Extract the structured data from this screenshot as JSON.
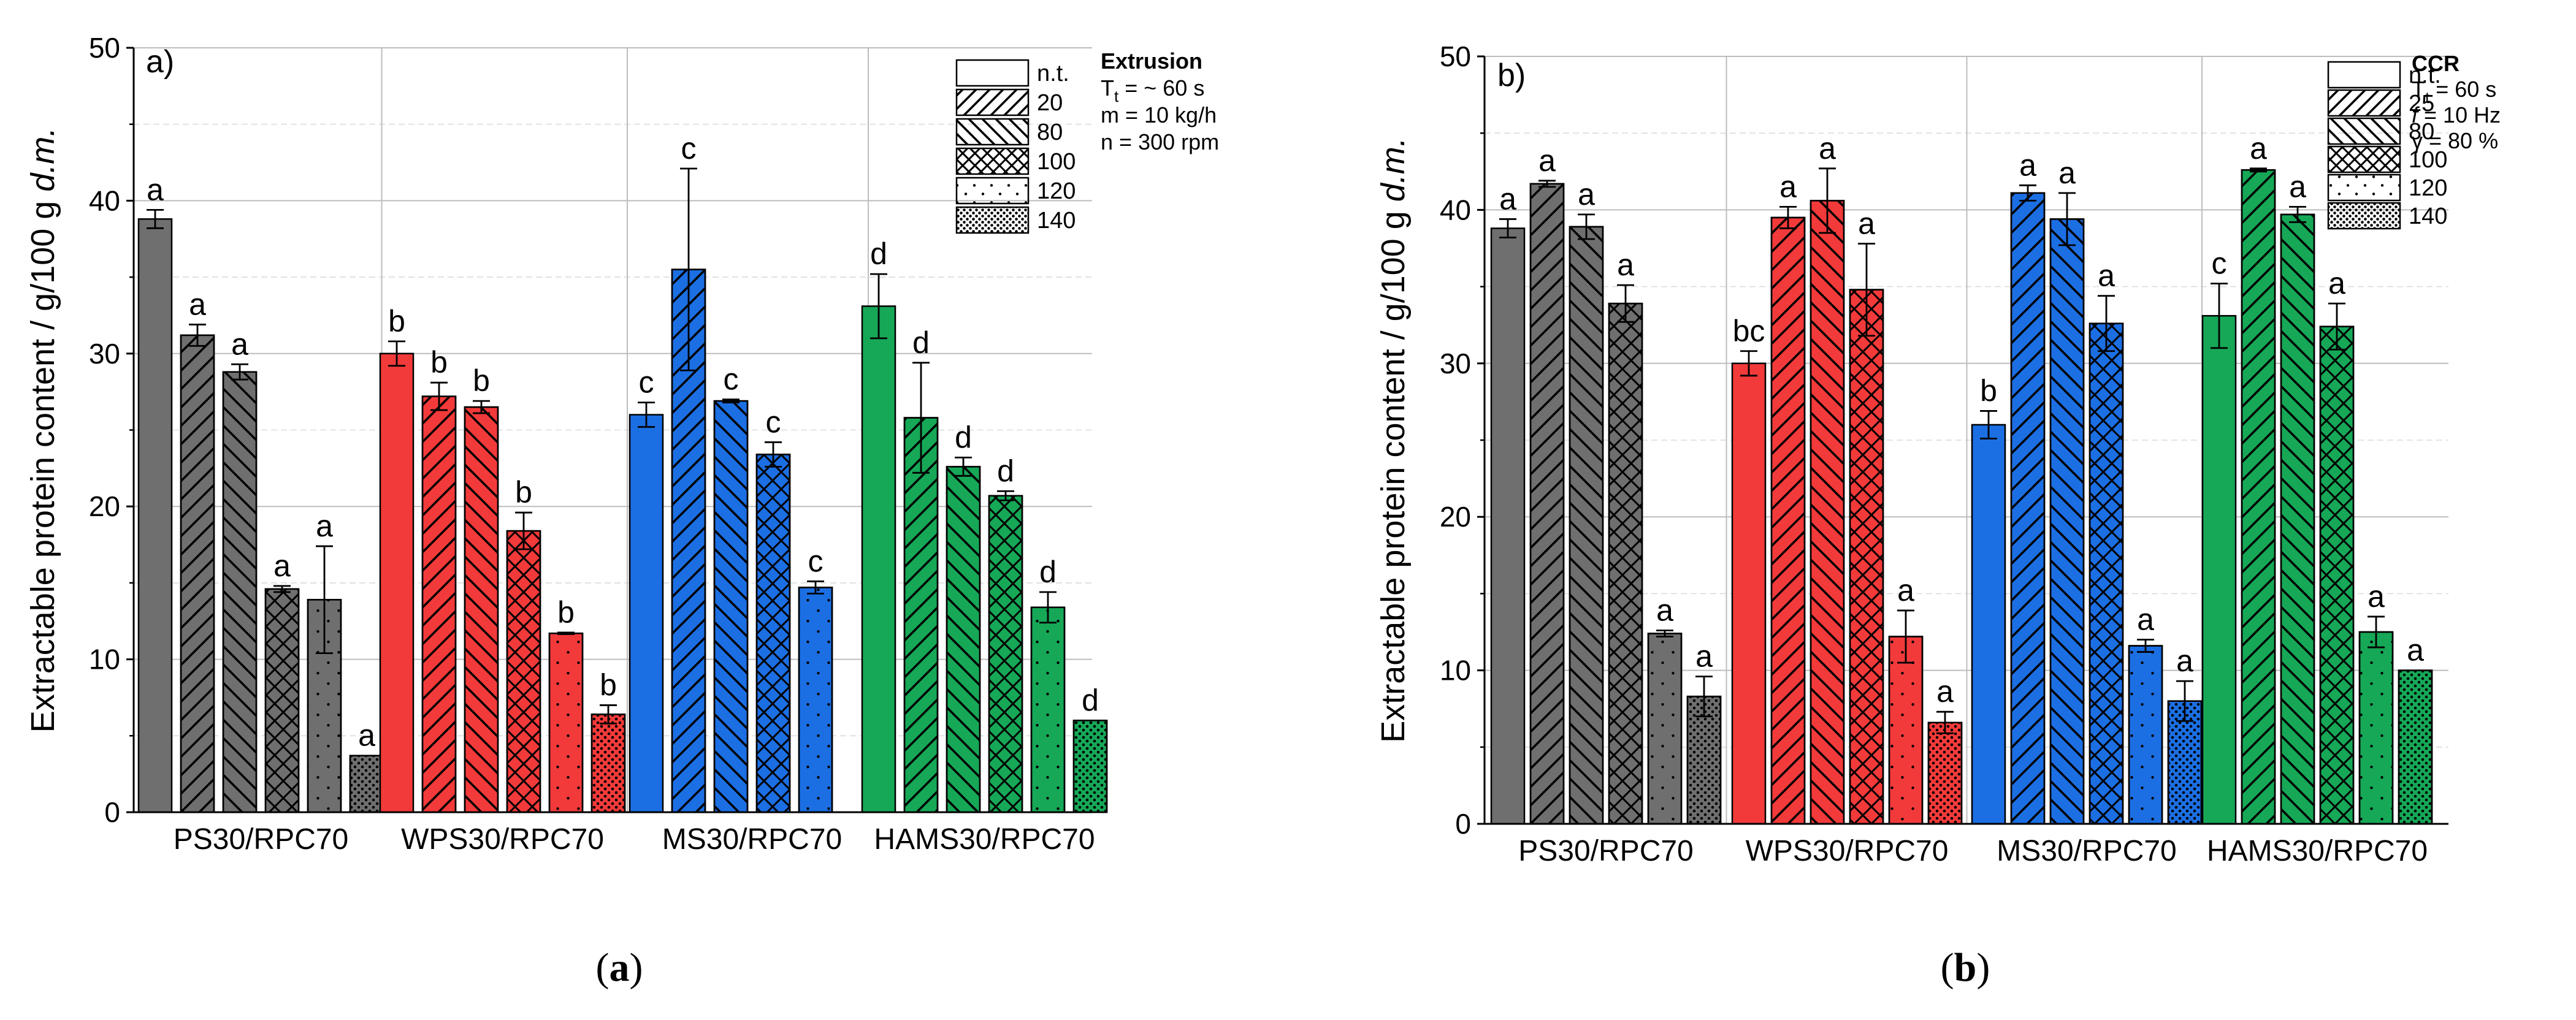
{
  "colors": {
    "PS30/RPC70": "#6f6f6f",
    "WPS30/RPC70": "#f33a3a",
    "MS30/RPC70": "#1c6fe3",
    "HAMS30/RPC70": "#16a857",
    "axis": "#000000",
    "grid": "#bdbdbd"
  },
  "legend_pattern_icons": [
    "blank",
    "hatch-forward-diagonal",
    "hatch-back-diagonal",
    "crosshatch",
    "sparse-dots",
    "dense-dots"
  ],
  "chart_data": [
    {
      "type": "bar",
      "panel_label": "a)",
      "caption": "(a)",
      "caption_letter": "a",
      "ylabel_main": "Extractable protein content / g/100 g ",
      "ylabel_italic": "d.m.",
      "ylim": [
        0,
        50
      ],
      "yticks": [
        0,
        10,
        20,
        30,
        40,
        50
      ],
      "grid": true,
      "categories": [
        "PS30/RPC70",
        "WPS30/RPC70",
        "MS30/RPC70",
        "HAMS30/RPC70"
      ],
      "legend_placement": "top-right",
      "legend_entries": [
        "n.t.",
        "20",
        "80",
        "100",
        "120",
        "140"
      ],
      "legend_info": [
        {
          "text": "Extrusion",
          "bold": true
        },
        {
          "pre": "T",
          "sub": "t",
          "post": " = ~ 60 s"
        },
        {
          "text": "m = 10 kg/h"
        },
        {
          "text": "n  = 300 rpm"
        }
      ],
      "series": [
        {
          "name": "n.t.",
          "values": [
            38.8,
            30.0,
            26.0,
            33.1
          ],
          "errors": [
            0.6,
            0.8,
            0.8,
            2.1
          ],
          "letters": [
            "a",
            "b",
            "c",
            "d"
          ]
        },
        {
          "name": "20",
          "values": [
            31.2,
            27.2,
            35.5,
            25.8
          ],
          "errors": [
            0.7,
            0.9,
            6.6,
            3.6
          ],
          "letters": [
            "a",
            "b",
            "c",
            "d"
          ]
        },
        {
          "name": "80",
          "values": [
            28.8,
            26.5,
            26.9,
            22.6
          ],
          "errors": [
            0.5,
            0.4,
            0.1,
            0.6
          ],
          "letters": [
            "a",
            "b",
            "c",
            "d"
          ]
        },
        {
          "name": "100",
          "values": [
            14.6,
            18.4,
            23.4,
            20.7
          ],
          "errors": [
            0.2,
            1.2,
            0.8,
            0.3
          ],
          "letters": [
            "a",
            "b",
            "c",
            "d"
          ]
        },
        {
          "name": "120",
          "values": [
            13.9,
            11.7,
            14.7,
            13.4
          ],
          "errors": [
            3.5,
            0.05,
            0.4,
            1.0
          ],
          "letters": [
            "a",
            "b",
            "c",
            "d"
          ]
        },
        {
          "name": "140",
          "values": [
            3.7,
            6.4,
            null,
            6.0
          ],
          "errors": [
            0,
            0.6,
            0,
            0
          ],
          "letters": [
            "a",
            "b",
            "",
            "d"
          ]
        }
      ]
    },
    {
      "type": "bar",
      "panel_label": "b)",
      "caption": "(b)",
      "caption_letter": "b",
      "ylabel_main": "Extractable protein content / g/100 g ",
      "ylabel_italic": "d.m.",
      "ylim": [
        0,
        50
      ],
      "yticks": [
        0,
        10,
        20,
        30,
        40,
        50
      ],
      "grid": true,
      "categories": [
        "PS30/RPC70",
        "WPS30/RPC70",
        "MS30/RPC70",
        "HAMS30/RPC70"
      ],
      "legend_placement": "top-right",
      "legend_entries": [
        "n.t.",
        "25",
        "80",
        "100",
        "120",
        "140"
      ],
      "legend_info": [
        {
          "text": "CCR",
          "bold": true
        },
        {
          "pre": "T",
          "sub": "t",
          "post": " = 60 s"
        },
        {
          "italic_pre": "f",
          "post": " = 10 Hz"
        },
        {
          "text": "γ = 80 %"
        }
      ],
      "series": [
        {
          "name": "n.t.",
          "values": [
            38.8,
            30.0,
            26.0,
            33.1
          ],
          "errors": [
            0.6,
            0.8,
            0.9,
            2.1
          ],
          "letters": [
            "a",
            "bc",
            "b",
            "c"
          ]
        },
        {
          "name": "25",
          "values": [
            41.7,
            39.5,
            41.1,
            42.6
          ],
          "errors": [
            0.2,
            0.7,
            0.5,
            0.1
          ],
          "letters": [
            "a",
            "a",
            "a",
            "a"
          ]
        },
        {
          "name": "80",
          "values": [
            38.9,
            40.6,
            39.4,
            39.7
          ],
          "errors": [
            0.8,
            2.1,
            1.7,
            0.5
          ],
          "letters": [
            "a",
            "a",
            "a",
            "a"
          ]
        },
        {
          "name": "100",
          "values": [
            33.9,
            34.8,
            32.6,
            32.4
          ],
          "errors": [
            1.2,
            3.0,
            1.8,
            1.5
          ],
          "letters": [
            "a",
            "a",
            "a",
            "a"
          ]
        },
        {
          "name": "120",
          "values": [
            12.4,
            12.2,
            11.6,
            12.5
          ],
          "errors": [
            0.2,
            1.7,
            0.4,
            1.0
          ],
          "letters": [
            "a",
            "a",
            "a",
            "a"
          ]
        },
        {
          "name": "140",
          "values": [
            8.3,
            6.6,
            8.0,
            10.0
          ],
          "errors": [
            1.3,
            0.7,
            1.3,
            0
          ],
          "letters": [
            "a",
            "a",
            "a",
            "a"
          ]
        }
      ]
    }
  ]
}
